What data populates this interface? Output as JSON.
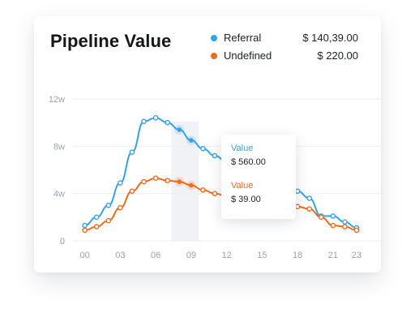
{
  "title": "Pipeline Value",
  "legend": [
    {
      "name": "Referral",
      "value": "$ 140,39.00",
      "color": "#34a3ec"
    },
    {
      "name": "Undefined",
      "value": "$ 220.00",
      "color": "#f26a1b"
    }
  ],
  "tooltip": {
    "items": [
      {
        "label": "Value",
        "value": "$ 560.00",
        "color": "#34a3ec"
      },
      {
        "label": "Value",
        "value": "$ 39.00",
        "color": "#f26a1b"
      }
    ]
  },
  "chart_data": {
    "type": "line",
    "x": [
      0,
      1,
      2,
      3,
      4,
      5,
      6,
      7,
      8,
      9,
      10,
      11,
      12,
      13,
      14,
      15,
      16,
      17,
      18,
      19,
      20,
      21,
      22,
      23
    ],
    "xticks": [
      0,
      3,
      6,
      9,
      12,
      15,
      18,
      21,
      23
    ],
    "xtick_labels": [
      "00",
      "03",
      "06",
      "09",
      "12",
      "15",
      "18",
      "21",
      "23"
    ],
    "yticks": [
      0,
      4,
      8,
      12
    ],
    "ytick_labels": [
      "0",
      "4w",
      "8w",
      "12w"
    ],
    "ylim": [
      0,
      12
    ],
    "xlim": [
      -1,
      23
    ],
    "grid": true,
    "highlight_x": 8.5,
    "series": [
      {
        "name": "Referral",
        "color": "#34a3ec",
        "values": [
          1.3,
          2.0,
          3.0,
          4.9,
          7.5,
          10.1,
          10.4,
          10.0,
          9.4,
          8.5,
          7.8,
          7.2,
          6.7,
          6.4,
          6.3,
          6.8,
          6.2,
          6.3,
          4.2,
          3.6,
          2.1,
          2.1,
          1.6,
          1.1
        ]
      },
      {
        "name": "Undefined",
        "color": "#f26a1b",
        "values": [
          0.9,
          1.2,
          1.7,
          2.8,
          4.2,
          5.0,
          5.3,
          5.1,
          5.0,
          4.7,
          4.3,
          4.0,
          3.8,
          3.7,
          3.4,
          3.0,
          3.3,
          3.0,
          2.9,
          2.7,
          2.0,
          1.3,
          1.2,
          0.9
        ]
      }
    ]
  }
}
